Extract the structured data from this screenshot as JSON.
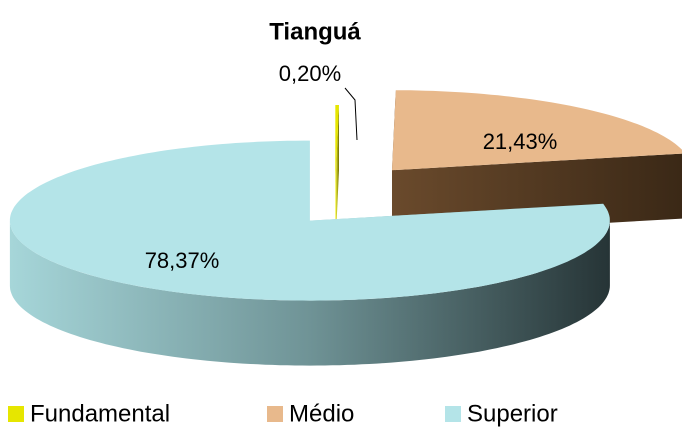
{
  "chart_data": {
    "type": "pie3d",
    "title": "Tianguá",
    "categories": [
      "Fundamental",
      "Médio",
      "Superior"
    ],
    "values": [
      0.2,
      21.43,
      78.37
    ],
    "value_labels": [
      "0,20%",
      "21,43%",
      "78,37%"
    ],
    "colors": [
      "#e6e600",
      "#e8b98c",
      "#b4e4e8"
    ]
  }
}
